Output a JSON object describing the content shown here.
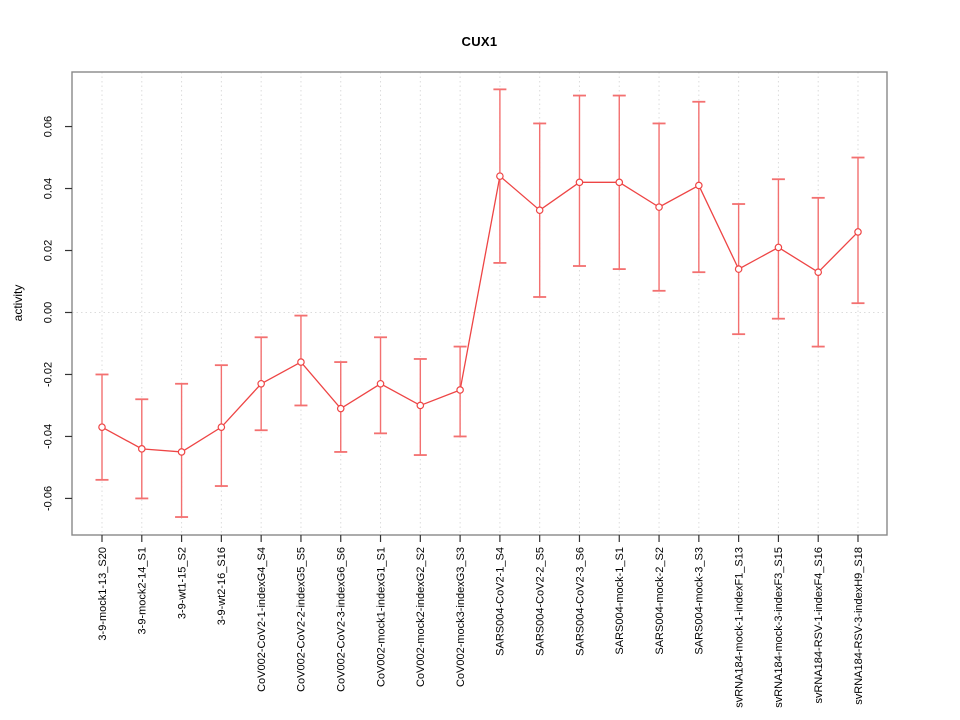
{
  "chart_data": {
    "type": "line",
    "title": "CUX1",
    "xlabel": "",
    "ylabel": "activity",
    "legend": "none",
    "grid": {
      "vertical_per_category": true,
      "horizontal_zero_line": true,
      "style": "dotted"
    },
    "ylim": [
      -0.0718,
      0.0776
    ],
    "yticks": [
      -0.06,
      -0.04,
      -0.02,
      0,
      0.02,
      0.04,
      0.06
    ],
    "ytick_labels": [
      "-0.06",
      "-0.04",
      "-0.02",
      "0.00",
      "0.02",
      "0.04",
      "0.06"
    ],
    "categories": [
      "3-9-mock1-13_S20",
      "3-9-mock2-14_S1",
      "3-9-wt1-15_S2",
      "3-9-wt2-16_S16",
      "CoV002-CoV2-1-indexG4_S4",
      "CoV002-CoV2-2-indexG5_S5",
      "CoV002-CoV2-3-indexG6_S6",
      "CoV002-mock1-indexG1_S1",
      "CoV002-mock2-indexG2_S2",
      "CoV002-mock3-indexG3_S3",
      "SARS004-CoV2-1_S4",
      "SARS004-CoV2-2_S5",
      "SARS004-CoV2-3_S6",
      "SARS004-mock-1_S1",
      "SARS004-mock-2_S2",
      "SARS004-mock-3_S3",
      "svRNA184-mock-1-indexF1_S13",
      "svRNA184-mock-3-indexF3_S15",
      "svRNA184-RSV-1-indexF4_S16",
      "svRNA184-RSV-3-indexH9_S18"
    ],
    "series": [
      {
        "name": "activity",
        "values": [
          -0.037,
          -0.044,
          -0.045,
          -0.037,
          -0.023,
          -0.016,
          -0.031,
          -0.023,
          -0.03,
          -0.025,
          0.044,
          0.033,
          0.042,
          0.042,
          0.034,
          0.041,
          0.014,
          0.021,
          0.013,
          0.026
        ],
        "lower": [
          -0.054,
          -0.06,
          -0.066,
          -0.056,
          -0.038,
          -0.03,
          -0.045,
          -0.039,
          -0.046,
          -0.04,
          0.016,
          0.005,
          0.015,
          0.014,
          0.007,
          0.013,
          -0.007,
          -0.002,
          -0.011,
          0.003
        ],
        "upper": [
          -0.02,
          -0.028,
          -0.023,
          -0.017,
          -0.008,
          -0.001,
          -0.016,
          -0.008,
          -0.015,
          -0.011,
          0.072,
          0.061,
          0.07,
          0.07,
          0.061,
          0.068,
          0.035,
          0.043,
          0.037,
          0.05
        ]
      }
    ],
    "colors": {
      "line": "#ee4545",
      "marker": "#ee4545",
      "error_bar": "#f37070",
      "grid": "#dcdcdc",
      "frame": "#888888",
      "tick": "#333333",
      "text": "#000000"
    }
  }
}
